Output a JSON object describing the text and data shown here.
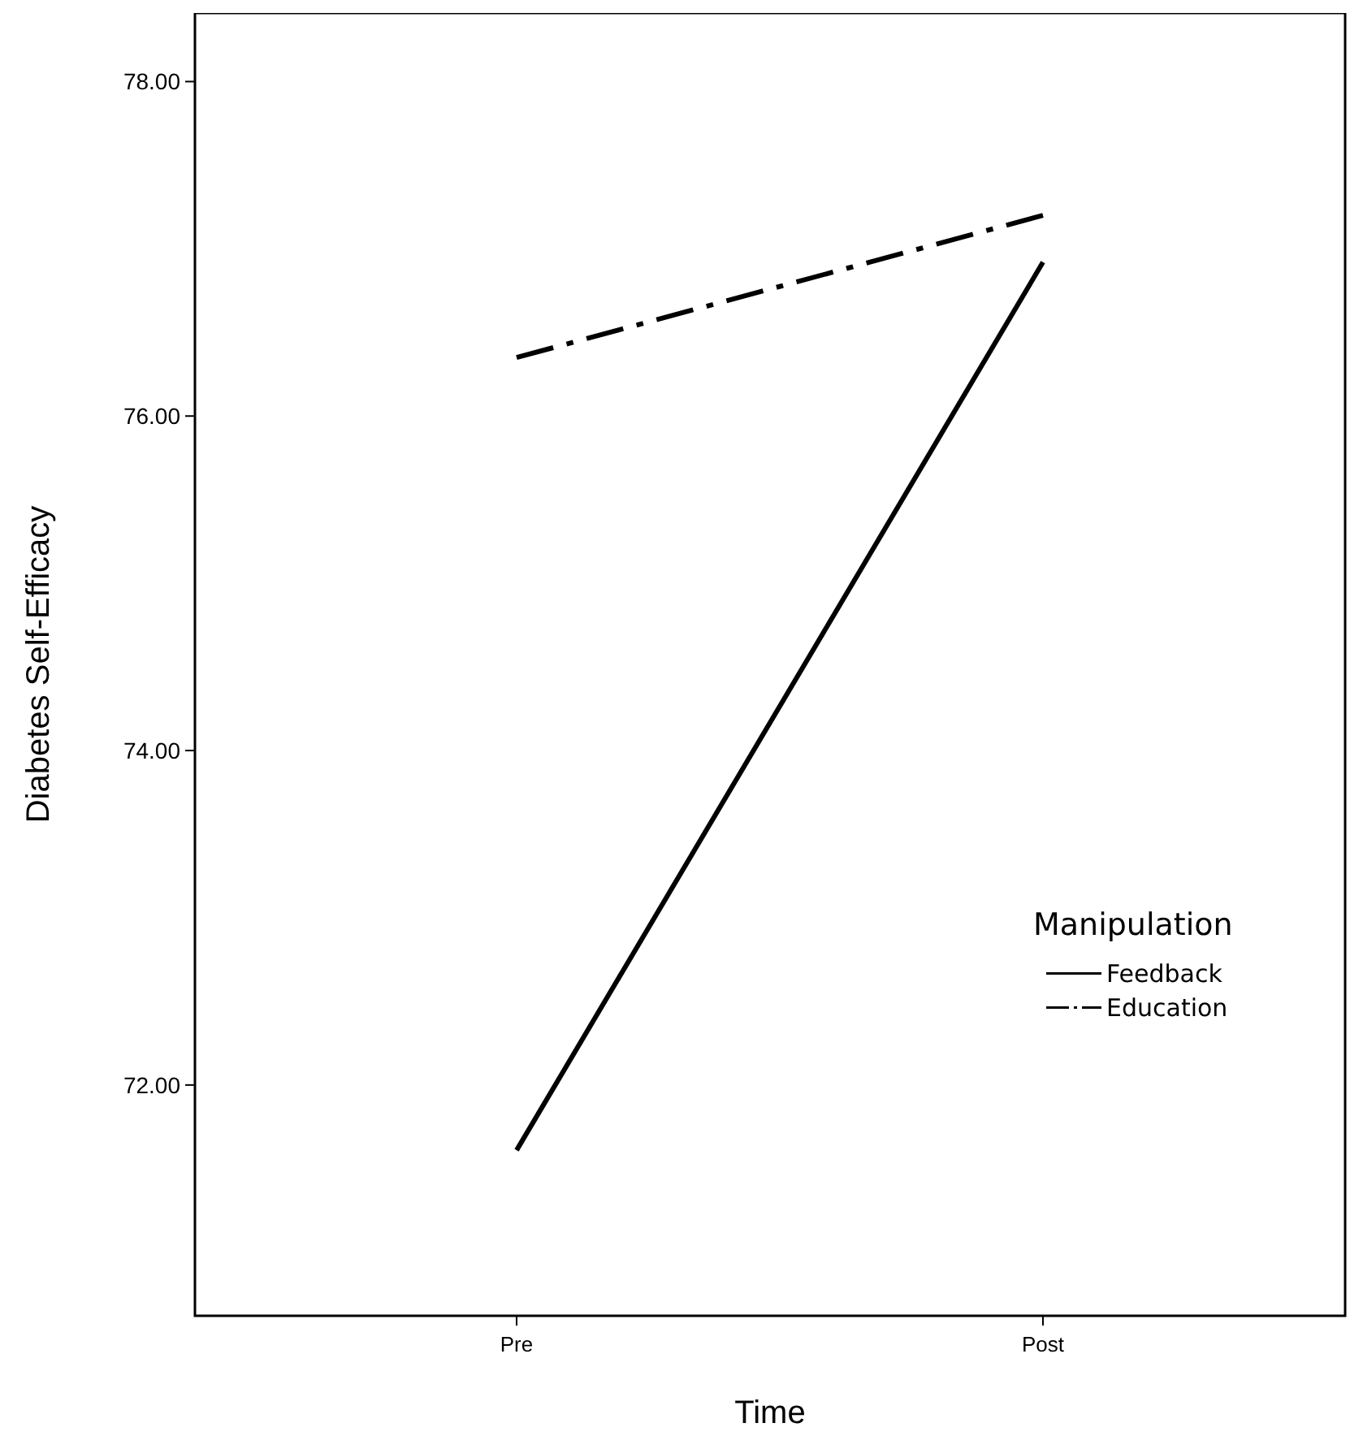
{
  "chart_data": {
    "type": "line",
    "xlabel": "Time",
    "ylabel": "Diabetes Self-Efficacy",
    "categories": [
      "Pre",
      "Post"
    ],
    "series": [
      {
        "name": "Feedback",
        "color": "#000000",
        "values": [
          71.61,
          76.92
        ],
        "line_style": "solid"
      },
      {
        "name": "Education",
        "color": "#000000",
        "values": [
          76.35,
          77.2
        ],
        "line_style": "dashed"
      }
    ],
    "ylim": [
      70.62,
      78.41
    ],
    "yticks": [
      {
        "value": 72,
        "label": "72.00"
      },
      {
        "value": 74,
        "label": "74.00"
      },
      {
        "value": 76,
        "label": "76.00"
      },
      {
        "value": 78,
        "label": "78.00"
      }
    ],
    "legend_title": "Manipulation",
    "legend": "right",
    "grid": false,
    "marker": "none"
  }
}
